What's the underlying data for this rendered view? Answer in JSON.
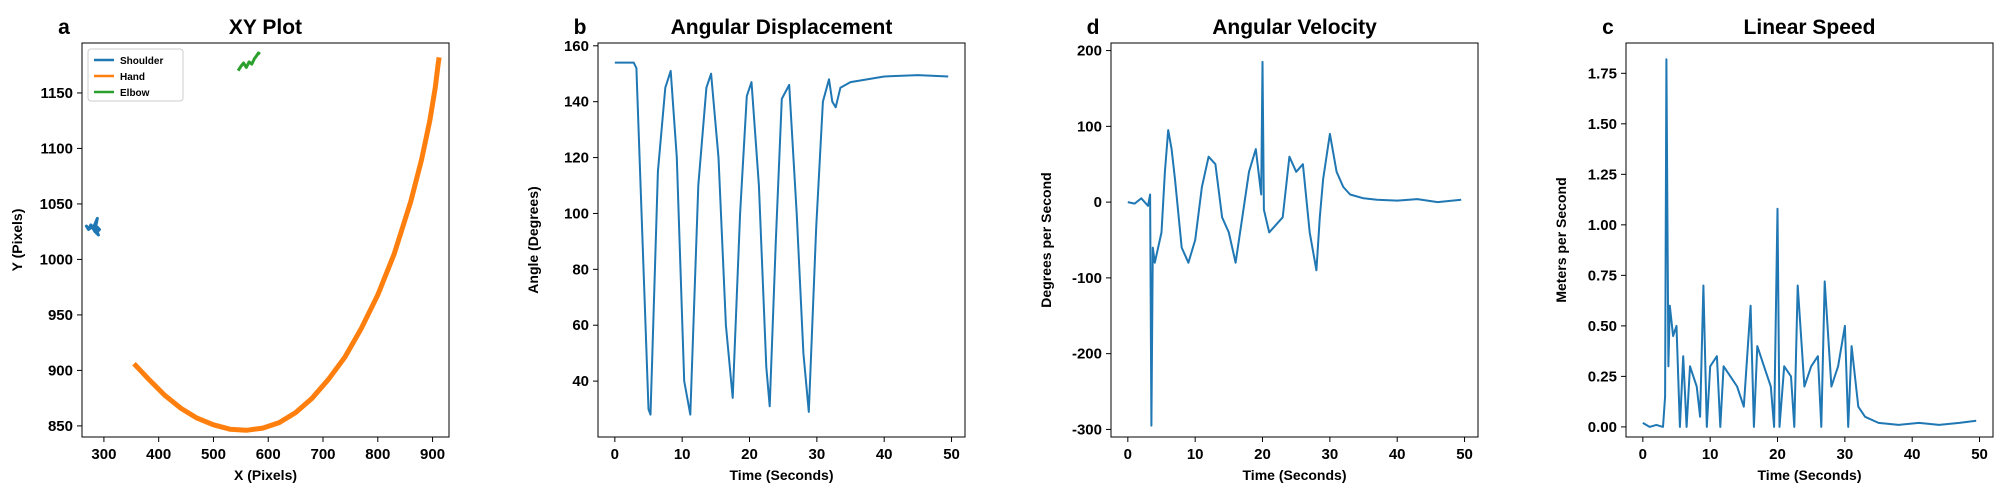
{
  "chart_data": [
    {
      "id": "xy",
      "type": "line",
      "panel_letter": "a",
      "title": "XY Plot",
      "xlabel": "X (Pixels)",
      "ylabel": "Y (Pixels)",
      "xlim": [
        260,
        930
      ],
      "ylim": [
        840,
        1195
      ],
      "xticks": [
        300,
        400,
        500,
        600,
        700,
        800,
        900
      ],
      "yticks": [
        850,
        900,
        950,
        1000,
        1050,
        1100,
        1150
      ],
      "legend": "top-left",
      "grid": false,
      "series": [
        {
          "name": "Shoulder",
          "color": "#1f77b4",
          "x": [
            270,
            275,
            280,
            284,
            286,
            288,
            283,
            287,
            290,
            286,
            292,
            288,
            284,
            280,
            276,
            272,
            268,
            272,
            278
          ],
          "y": [
            1029,
            1028,
            1030,
            1027,
            1032,
            1037,
            1031,
            1026,
            1022,
            1024,
            1027,
            1029,
            1025,
            1028,
            1031,
            1027,
            1030,
            1028,
            1029
          ]
        },
        {
          "name": "Hand",
          "color": "#ff7f0e",
          "x": [
            355,
            380,
            410,
            440,
            470,
            500,
            530,
            560,
            590,
            620,
            650,
            680,
            710,
            740,
            770,
            800,
            830,
            860,
            880,
            895,
            905,
            910,
            912
          ],
          "y": [
            906,
            893,
            878,
            866,
            857,
            851,
            847,
            846,
            848,
            853,
            862,
            875,
            892,
            912,
            938,
            968,
            1005,
            1052,
            1090,
            1125,
            1155,
            1175,
            1182
          ]
        },
        {
          "name": "Elbow",
          "color": "#2ca02c",
          "x": [
            545,
            550,
            555,
            560,
            565,
            570,
            575,
            578,
            582,
            585
          ],
          "y": [
            1170,
            1174,
            1177,
            1173,
            1178,
            1176,
            1181,
            1183,
            1186,
            1185
          ]
        }
      ]
    },
    {
      "id": "angdisp",
      "type": "line",
      "panel_letter": "b",
      "title": "Angular Displacement",
      "xlabel": "Time (Seconds)",
      "ylabel": "Angle (Degrees)",
      "xlim": [
        -2.5,
        52
      ],
      "ylim": [
        20,
        161
      ],
      "xticks": [
        0,
        10,
        20,
        30,
        40,
        50
      ],
      "yticks": [
        40,
        60,
        80,
        100,
        120,
        140,
        160
      ],
      "grid": false,
      "series": [
        {
          "name": "",
          "color": "#1f77b4",
          "x": [
            0,
            2.8,
            3.2,
            5.0,
            5.3,
            6.4,
            7.5,
            8.3,
            9.2,
            10.3,
            11.2,
            12.4,
            13.6,
            14.3,
            15.4,
            16.5,
            17.5,
            18.6,
            19.6,
            20.3,
            21.4,
            22.5,
            23.0,
            23.9,
            24.8,
            25.9,
            27.0,
            28.0,
            28.8,
            29.9,
            30.9,
            31.8,
            32.3,
            32.8,
            33.5,
            35,
            40,
            45,
            49.5
          ],
          "y": [
            154,
            154,
            152,
            30,
            28,
            115,
            145,
            151,
            120,
            40,
            28,
            110,
            145,
            150,
            120,
            60,
            34,
            100,
            142,
            147,
            110,
            45,
            31,
            90,
            141,
            146,
            100,
            50,
            29,
            95,
            140,
            148,
            140,
            138,
            145,
            147,
            149,
            149.5,
            149
          ]
        }
      ]
    },
    {
      "id": "angvel",
      "type": "line",
      "panel_letter": "d",
      "title": "Angular Velocity",
      "xlabel": "Time (Seconds)",
      "ylabel": "Degrees per Second",
      "xlim": [
        -2.5,
        52
      ],
      "ylim": [
        -310,
        210
      ],
      "xticks": [
        0,
        10,
        20,
        30,
        40,
        50
      ],
      "yticks": [
        -300,
        -200,
        -100,
        0,
        100,
        200
      ],
      "grid": false,
      "series": [
        {
          "name": "",
          "color": "#1f77b4",
          "x": [
            0,
            1,
            2,
            3,
            3.3,
            3.5,
            3.7,
            4,
            5,
            5.5,
            6,
            6.5,
            7,
            8,
            9,
            10,
            11,
            12,
            13,
            14,
            15,
            16,
            17,
            18,
            19,
            19.8,
            20,
            20.2,
            21,
            22,
            23,
            24,
            25,
            26,
            27,
            28,
            28.5,
            29,
            30,
            31,
            32,
            33,
            35,
            37,
            40,
            43,
            46,
            49.5
          ],
          "y": [
            0,
            -2,
            5,
            -5,
            10,
            -295,
            -60,
            -80,
            -40,
            40,
            95,
            70,
            30,
            -60,
            -80,
            -50,
            20,
            60,
            50,
            -20,
            -40,
            -80,
            -20,
            40,
            70,
            10,
            185,
            -10,
            -40,
            -30,
            -20,
            60,
            40,
            50,
            -40,
            -90,
            -20,
            30,
            90,
            40,
            20,
            10,
            5,
            3,
            2,
            4,
            0,
            3
          ]
        }
      ]
    },
    {
      "id": "linspeed",
      "type": "line",
      "panel_letter": "c",
      "title": "Linear Speed",
      "xlabel": "Time (Seconds)",
      "ylabel": "Meters per Second",
      "xlim": [
        -2.5,
        52
      ],
      "ylim": [
        -0.05,
        1.9
      ],
      "xticks": [
        0,
        10,
        20,
        30,
        40,
        50
      ],
      "yticks": [
        0.0,
        0.25,
        0.5,
        0.75,
        1.0,
        1.25,
        1.5,
        1.75
      ],
      "ytick_labels": [
        "0.00",
        "0.25",
        "0.50",
        "0.75",
        "1.00",
        "1.25",
        "1.50",
        "1.75"
      ],
      "grid": false,
      "series": [
        {
          "name": "",
          "color": "#1f77b4",
          "x": [
            0,
            1,
            2,
            3,
            3.3,
            3.5,
            3.8,
            4,
            4.5,
            5,
            5.5,
            6,
            6.5,
            7,
            8,
            8.5,
            9,
            9.5,
            10,
            11,
            11.5,
            12,
            13,
            14,
            15,
            16,
            16.5,
            17,
            18,
            19,
            19.5,
            20,
            20.3,
            21,
            22,
            22.5,
            23,
            24,
            25,
            26,
            26.5,
            27,
            28,
            29,
            30,
            30.5,
            31,
            32,
            33,
            35,
            38,
            41,
            44,
            47,
            49.5
          ],
          "y": [
            0.02,
            0.0,
            0.01,
            0.0,
            0.15,
            1.82,
            0.3,
            0.6,
            0.45,
            0.5,
            0.0,
            0.35,
            0.0,
            0.3,
            0.2,
            0.05,
            0.7,
            0.0,
            0.3,
            0.35,
            0.0,
            0.3,
            0.25,
            0.2,
            0.1,
            0.6,
            0.0,
            0.4,
            0.3,
            0.2,
            0.0,
            1.08,
            0.0,
            0.3,
            0.25,
            0.0,
            0.7,
            0.2,
            0.3,
            0.35,
            0.0,
            0.72,
            0.2,
            0.3,
            0.5,
            0.0,
            0.4,
            0.1,
            0.05,
            0.02,
            0.01,
            0.02,
            0.01,
            0.02,
            0.03
          ]
        }
      ]
    }
  ]
}
